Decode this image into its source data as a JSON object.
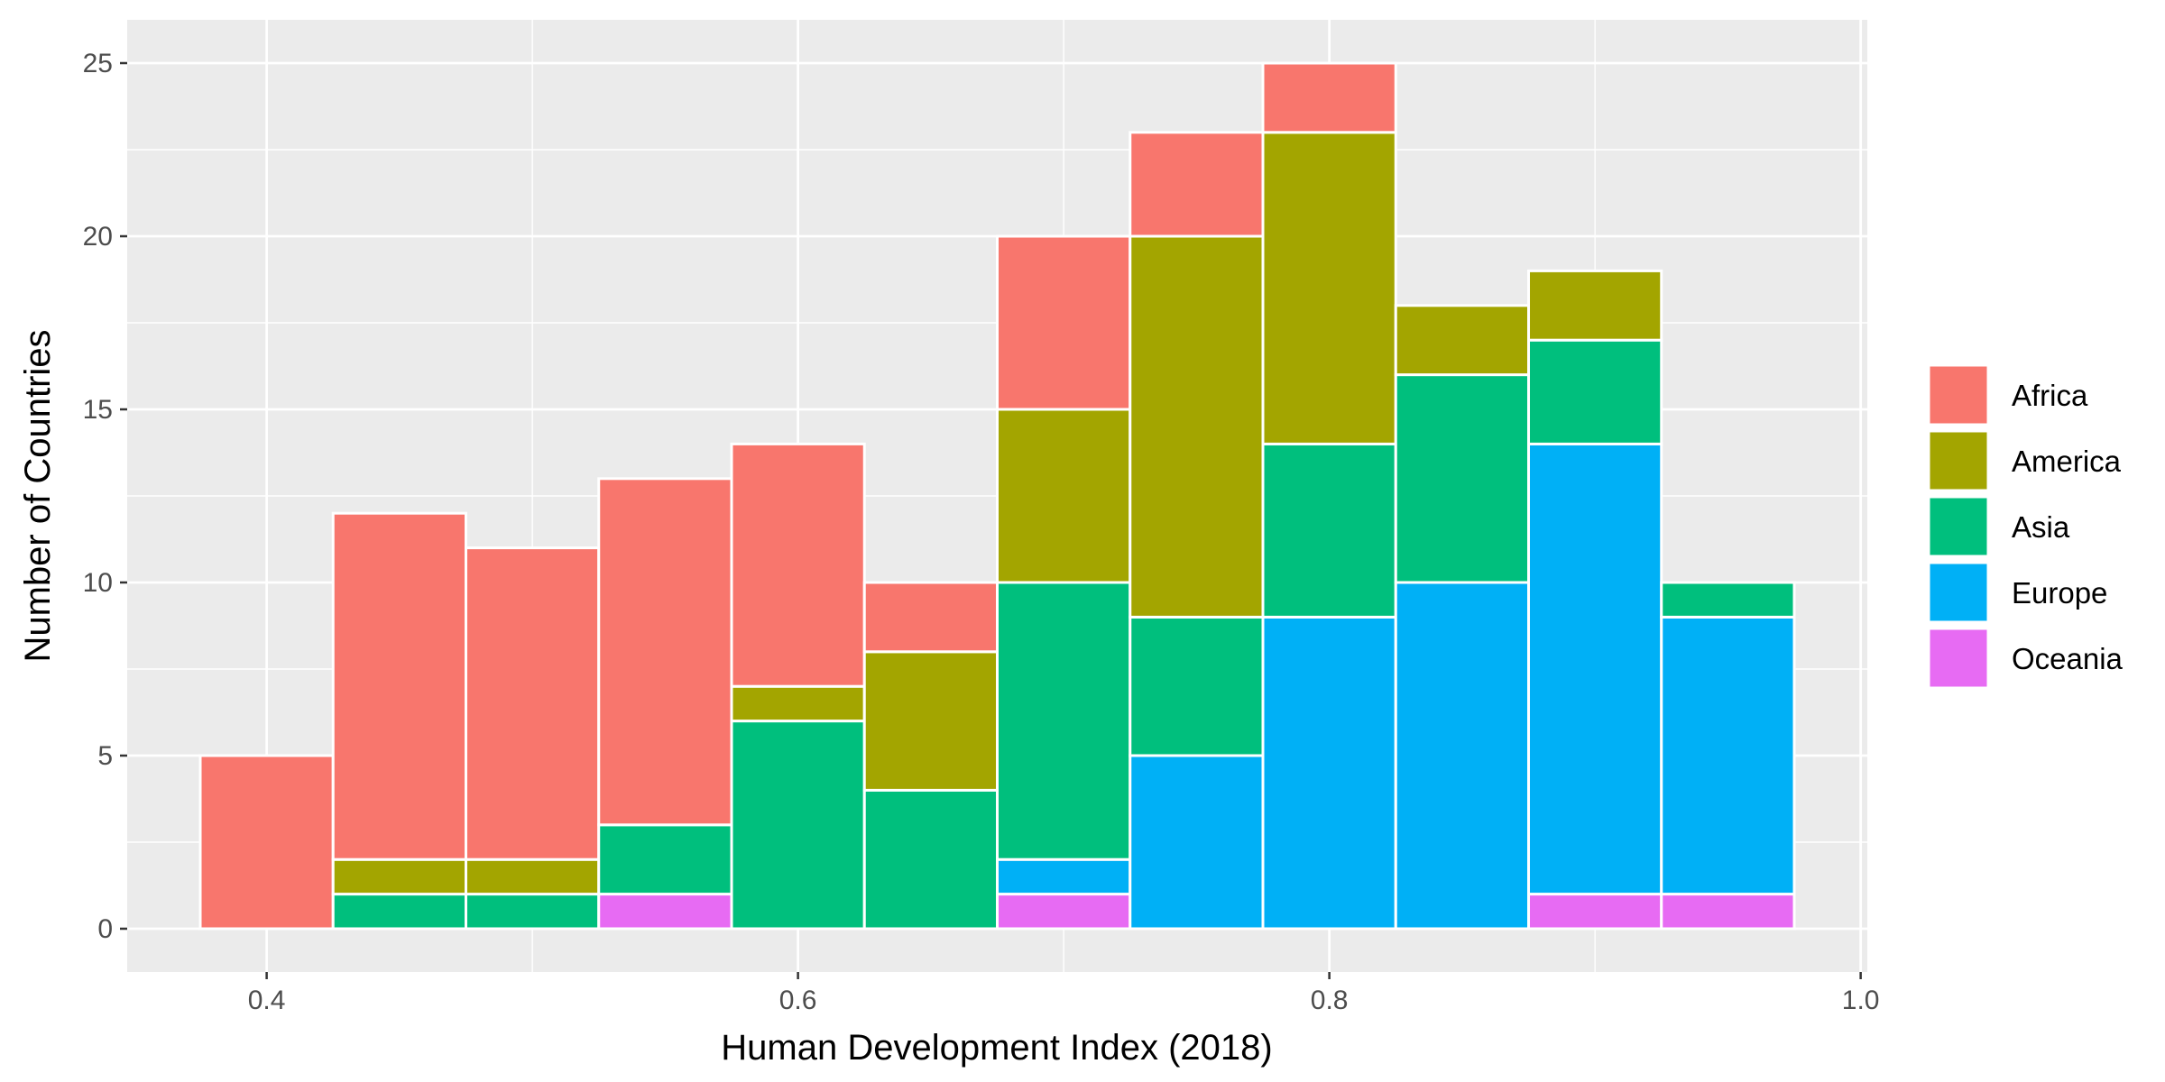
{
  "chart_data": {
    "type": "bar",
    "stacked": true,
    "xlabel": "Human Development Index (2018)",
    "ylabel": "Number of Countries",
    "xlim": [
      0.3475,
      1.0025
    ],
    "ylim": [
      -1.25,
      26.25
    ],
    "x_ticks": [
      0.4,
      0.6,
      0.8,
      1.0
    ],
    "x_tick_labels": [
      "0.4",
      "0.6",
      "0.8",
      "1.0"
    ],
    "y_ticks": [
      0,
      5,
      10,
      15,
      20,
      25
    ],
    "y_tick_labels": [
      "0",
      "5",
      "10",
      "15",
      "20",
      "25"
    ],
    "grid": true,
    "legend_position": "right",
    "bin_width": 0.05,
    "bin_centers": [
      0.4,
      0.45,
      0.5,
      0.55,
      0.6,
      0.65,
      0.7,
      0.75,
      0.8,
      0.85,
      0.9,
      0.95
    ],
    "series": [
      {
        "name": "Oceania",
        "color": "#E76BF3",
        "values": [
          0,
          0,
          0,
          1,
          0,
          0,
          1,
          0,
          0,
          0,
          1,
          1
        ]
      },
      {
        "name": "Europe",
        "color": "#00B0F6",
        "values": [
          0,
          0,
          0,
          0,
          0,
          0,
          1,
          5,
          9,
          10,
          13,
          8
        ]
      },
      {
        "name": "Asia",
        "color": "#00BF7D",
        "values": [
          0,
          1,
          1,
          2,
          6,
          4,
          8,
          4,
          5,
          6,
          3,
          1
        ]
      },
      {
        "name": "America",
        "color": "#A3A500",
        "values": [
          0,
          1,
          1,
          0,
          1,
          4,
          5,
          11,
          9,
          2,
          2,
          0
        ]
      },
      {
        "name": "Africa",
        "color": "#F8766D",
        "values": [
          5,
          10,
          9,
          10,
          7,
          2,
          5,
          3,
          2,
          0,
          0,
          0
        ]
      }
    ],
    "legend_order": [
      "Africa",
      "America",
      "Asia",
      "Europe",
      "Oceania"
    ]
  }
}
